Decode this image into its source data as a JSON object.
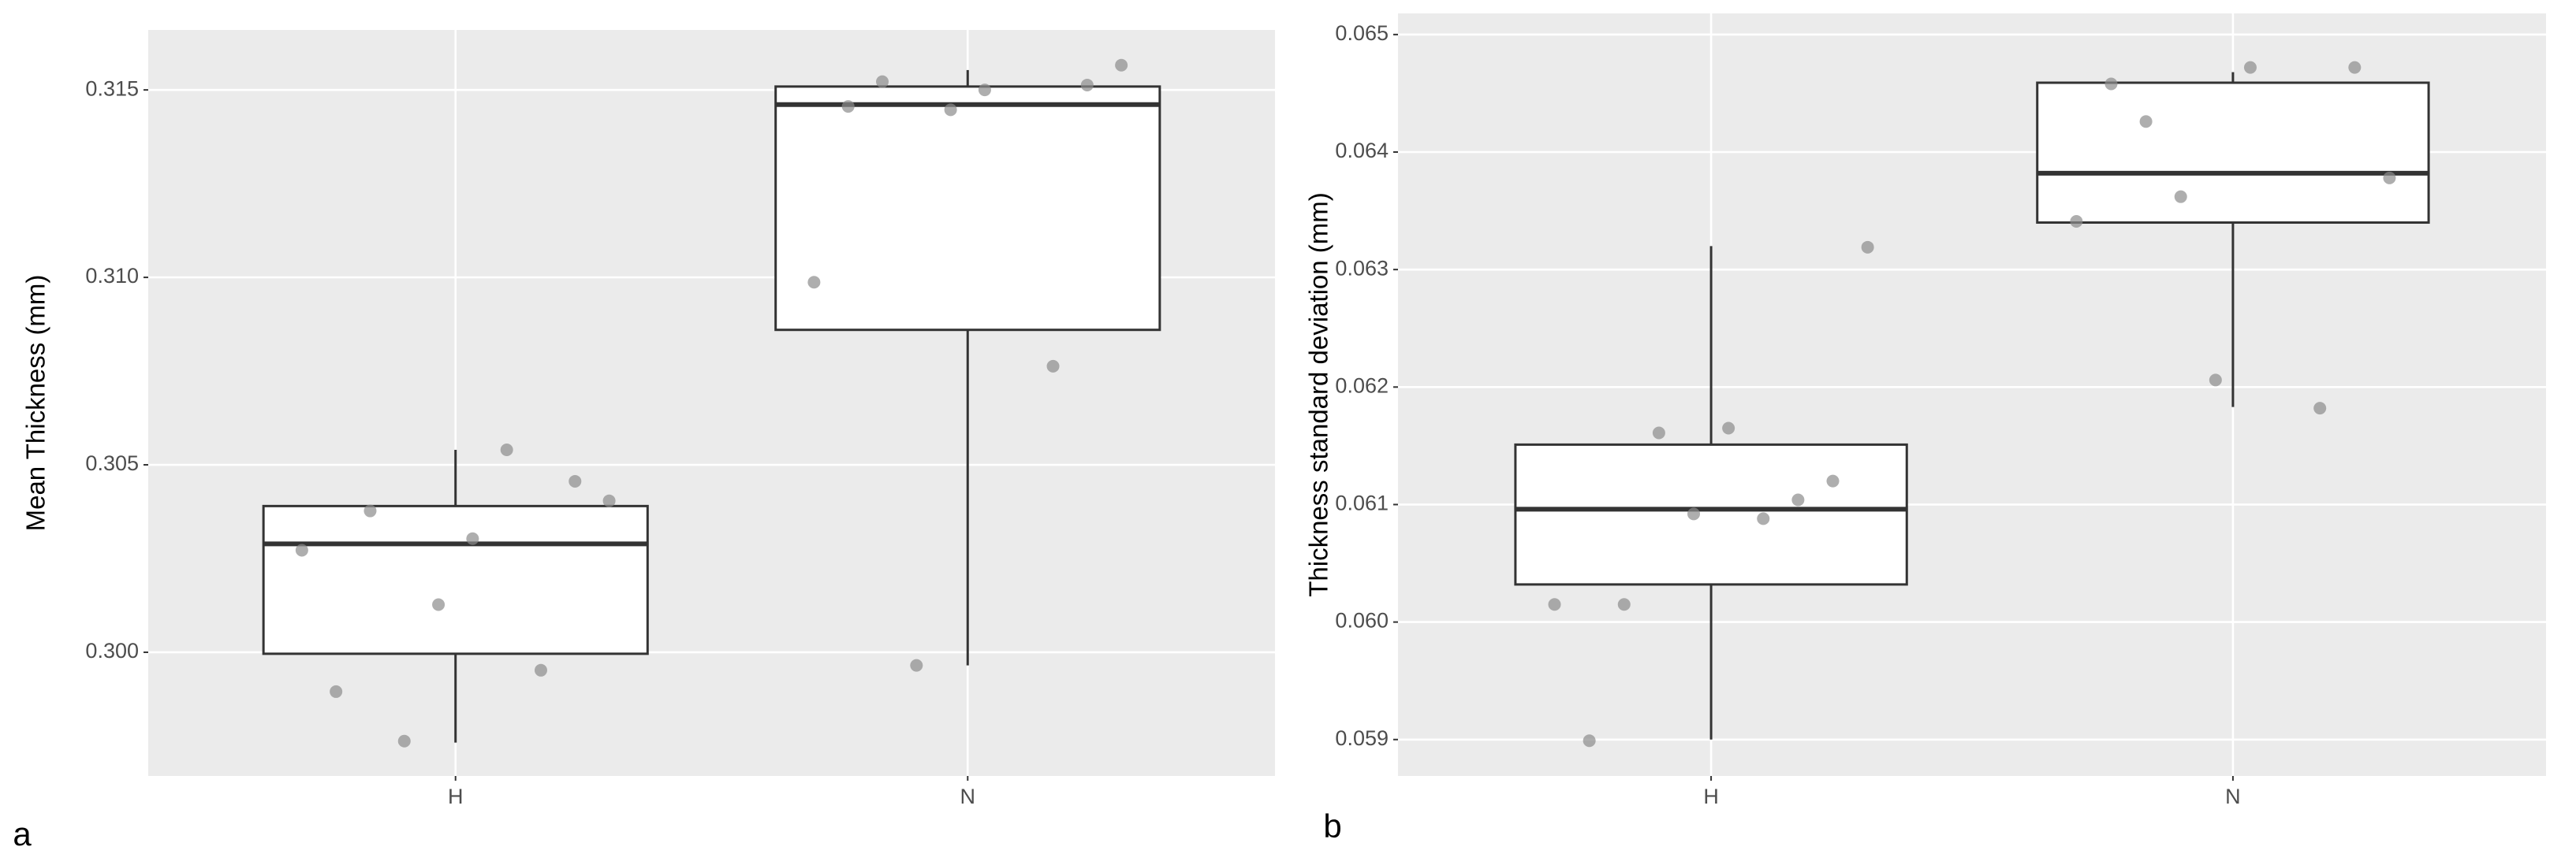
{
  "chart_data": [
    {
      "type": "box",
      "label": "a",
      "y_label": "Mean Thickness (mm)",
      "categories": [
        "H",
        "N"
      ],
      "boxes": [
        {
          "min": 0.29759,
          "q1": 0.29996,
          "median": 0.30289,
          "q3": 0.3039,
          "max": 0.3054
        },
        {
          "min": 0.29965,
          "q1": 0.3086,
          "median": 0.31461,
          "q3": 0.31509,
          "max": 0.31553
        }
      ],
      "points": [
        [
          0.29763,
          0.30272,
          0.29952,
          0.30127,
          0.29895,
          0.30456,
          0.30303,
          0.30377,
          0.30404,
          0.3054
        ],
        [
          0.29965,
          0.30987,
          0.30763,
          0.31447,
          0.31456,
          0.31513,
          0.315,
          0.31522,
          0.31566
        ]
      ],
      "ylim": [
        0.2967,
        0.3166
      ],
      "yticks": [
        {
          "value": 0.3,
          "label": "0.300"
        },
        {
          "value": 0.305,
          "label": "0.305"
        },
        {
          "value": 0.31,
          "label": "0.310"
        },
        {
          "value": 0.315,
          "label": "0.315"
        }
      ],
      "grid": true,
      "box_color": "#ffffff",
      "point_color": "#8c8c8c"
    },
    {
      "type": "box",
      "label": "b",
      "y_label": "Thickness standard deviation (mm)",
      "categories": [
        "H",
        "N"
      ],
      "boxes": [
        {
          "min": 0.059,
          "q1": 0.06032,
          "median": 0.06096,
          "q3": 0.06151,
          "max": 0.0632
        },
        {
          "min": 0.06183,
          "q1": 0.0634,
          "median": 0.06382,
          "q3": 0.06459,
          "max": 0.06468
        }
      ],
      "points": [
        [
          0.06161,
          0.06015,
          0.06104,
          0.06092,
          0.05899,
          0.0612,
          0.06165,
          0.06015,
          0.06319,
          0.06088
        ],
        [
          0.06362,
          0.06341,
          0.06182,
          0.06206,
          0.06458,
          0.06472,
          0.06472,
          0.06426,
          0.06378
        ]
      ],
      "ylim": [
        0.05869,
        0.06518
      ],
      "yticks": [
        {
          "value": 0.059,
          "label": "0.059"
        },
        {
          "value": 0.06,
          "label": "0.060"
        },
        {
          "value": 0.061,
          "label": "0.061"
        },
        {
          "value": 0.062,
          "label": "0.062"
        },
        {
          "value": 0.063,
          "label": "0.063"
        },
        {
          "value": 0.064,
          "label": "0.064"
        },
        {
          "value": 0.065,
          "label": "0.065"
        }
      ],
      "grid": true,
      "box_color": "#ffffff",
      "point_color": "#8c8c8c"
    }
  ]
}
